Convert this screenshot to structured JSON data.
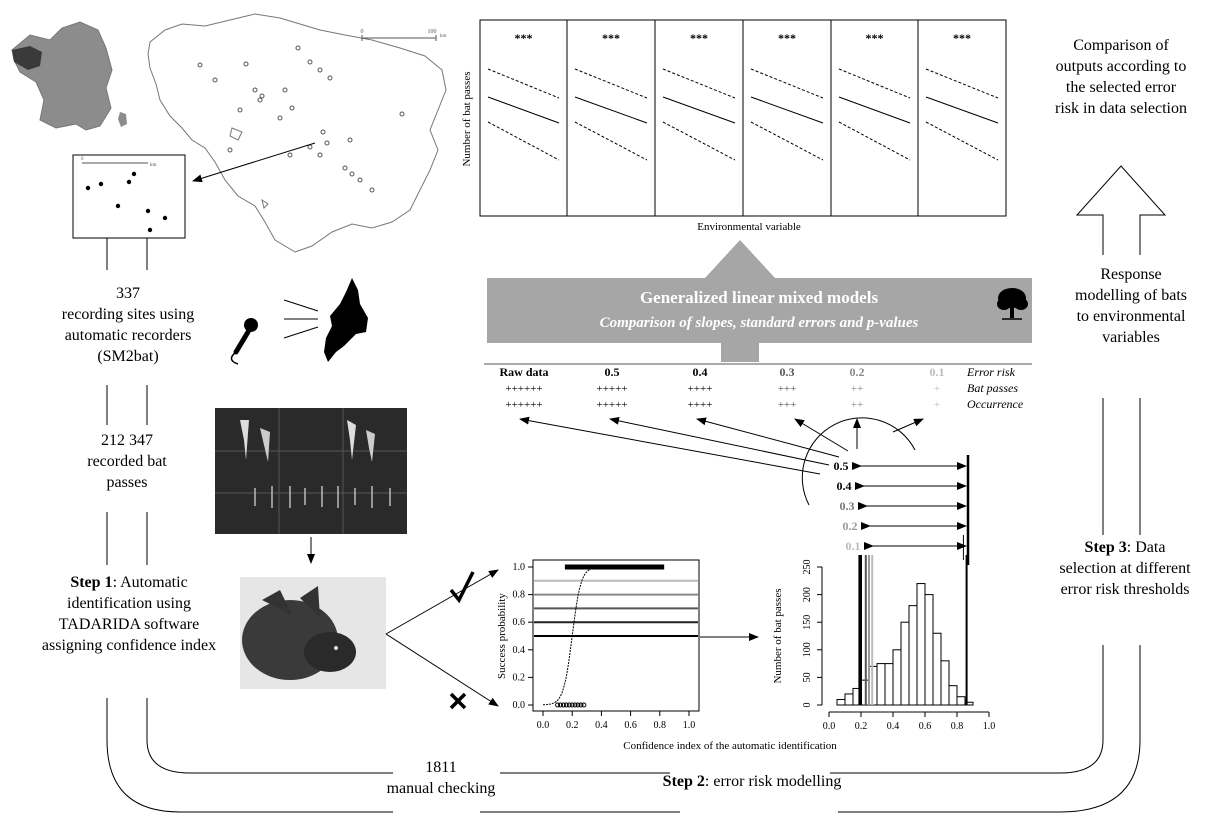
{
  "map": {
    "scale_start": "0",
    "scale_end": "100",
    "scale_unit": "km",
    "inset_scale_start": "0",
    "inset_scale_unit": "km"
  },
  "sites": {
    "count": "337",
    "text": "recording sites using automatic recorders (SM2bat)"
  },
  "passes": {
    "count": "212 347",
    "text": "recorded bat passes"
  },
  "step1": {
    "label": "Step 1",
    "text": ": Automatic identification using TADARIDA software assigning confidence index"
  },
  "step2": {
    "label": "Step 2",
    "text": ": error risk modelling"
  },
  "step3": {
    "label": "Step 3",
    "text": ": Data selection at different error risk thresholds"
  },
  "manual": {
    "count": "1811",
    "text": "manual checking"
  },
  "outputs": {
    "text": "Comparison of outputs according to the selected error risk in data selection"
  },
  "response": {
    "text": "Response modelling of bats to environmental variables"
  },
  "glmm": {
    "title": "Generalized linear mixed models",
    "subtitle": "Comparison of slopes, standard errors and p-values"
  },
  "panels": {
    "ylabel": "Number of bat passes",
    "xlabel": "Environmental variable",
    "stars": [
      "***",
      "***",
      "***",
      "***",
      "***",
      "***"
    ]
  },
  "table": {
    "columns": [
      "Raw data",
      "0.5",
      "0.4",
      "0.3",
      "0.2",
      "0.1"
    ],
    "bat_passes": [
      "++++++",
      "+++++",
      "++++",
      "+++",
      "++",
      "+"
    ],
    "occurrence": [
      "++++++",
      "+++++",
      "++++",
      "+++",
      "++",
      "+"
    ],
    "row_labels": [
      "Error risk",
      "Bat passes",
      "Occurrence"
    ],
    "colors": [
      "#000000",
      "#000000",
      "#000000",
      "#555555",
      "#8a8a8a",
      "#bbbbbb"
    ]
  },
  "thresholds": {
    "labels": [
      "0.5",
      "0.4",
      "0.3",
      "0.2",
      "0.1"
    ],
    "colors": [
      "#000000",
      "#000000",
      "#777777",
      "#999999",
      "#bbbbbb"
    ]
  },
  "chart_data": [
    {
      "type": "scatter",
      "title": "",
      "xlabel": "Confidence index of the automatic identification",
      "ylabel": "Success probability",
      "xlim": [
        0,
        1
      ],
      "ylim": [
        0,
        1
      ],
      "xticks": [
        "0.0",
        "0.2",
        "0.4",
        "0.6",
        "0.8",
        "1.0"
      ],
      "yticks": [
        "0.0",
        "0.2",
        "0.4",
        "0.6",
        "0.8",
        "1.0"
      ],
      "hlines": [
        0.5,
        0.6,
        0.7,
        0.8,
        0.9
      ],
      "hline_colors": [
        "#000000",
        "#222222",
        "#555555",
        "#888888",
        "#bbbbbb"
      ],
      "success_range": [
        0.15,
        0.83
      ],
      "failure_range": [
        0.1,
        0.28
      ],
      "logistic": {
        "midpoint": 0.2,
        "scale": 0.03
      }
    },
    {
      "type": "bar",
      "title": "",
      "xlabel": "",
      "ylabel": "Number of bat passes",
      "xlim": [
        0,
        1
      ],
      "ylim": [
        0,
        250
      ],
      "xticks": [
        "0.0",
        "0.2",
        "0.4",
        "0.6",
        "0.8",
        "1.0"
      ],
      "yticks": [
        "0",
        "50",
        "100",
        "150",
        "200",
        "250"
      ],
      "bin_width": 0.05,
      "bins": [
        0.05,
        0.1,
        0.15,
        0.2,
        0.25,
        0.3,
        0.35,
        0.4,
        0.45,
        0.5,
        0.55,
        0.6,
        0.65,
        0.7,
        0.75,
        0.8,
        0.85
      ],
      "values": [
        10,
        20,
        30,
        45,
        70,
        75,
        75,
        100,
        150,
        180,
        220,
        200,
        130,
        80,
        35,
        15,
        5
      ],
      "vlines": [
        0.19,
        0.2,
        0.23,
        0.25,
        0.27,
        0.86
      ],
      "vline_colors": [
        "#000000",
        "#000000",
        "#555555",
        "#999999",
        "#bbbbbb",
        "#000000"
      ]
    }
  ]
}
